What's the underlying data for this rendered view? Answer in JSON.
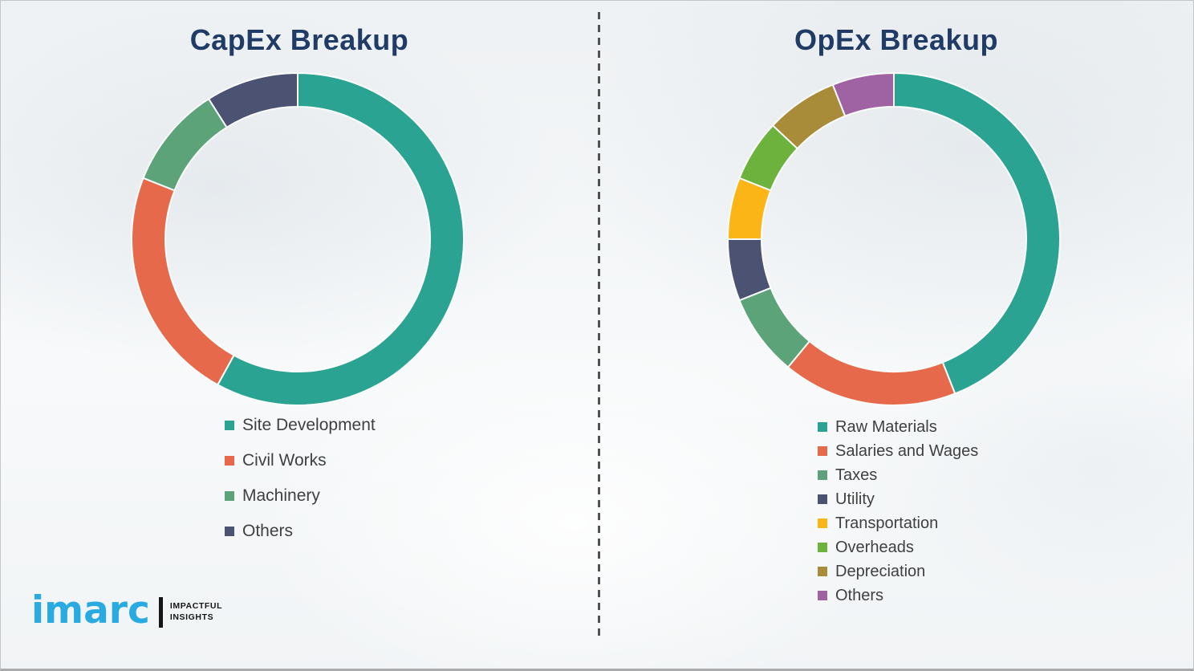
{
  "style": {
    "background": "#f2f4f5",
    "title_color": "#1f3b66",
    "legend_text_color": "#404040",
    "divider_color": "#525252",
    "segment_gap_color": "#fafbfb"
  },
  "chart_data": [
    {
      "type": "pie",
      "subtype": "donut",
      "title": "CapEx Breakup",
      "labels": [
        "Site Development",
        "Civil Works",
        "Machinery",
        "Others"
      ],
      "values": [
        58,
        23,
        10,
        9
      ],
      "values_note": "percent, estimated from arc angles (no numeric labels shown)",
      "colors": [
        "#2aa392",
        "#e5694a",
        "#5da37a",
        "#4b5272"
      ],
      "start_angle_deg": 0,
      "direction": "clockwise",
      "legend_position": "below"
    },
    {
      "type": "pie",
      "subtype": "donut",
      "title": "OpEx Breakup",
      "labels": [
        "Raw Materials",
        "Salaries and Wages",
        "Taxes",
        "Utility",
        "Transportation",
        "Overheads",
        "Depreciation",
        "Others"
      ],
      "values": [
        44,
        17,
        8,
        6,
        6,
        6,
        7,
        6
      ],
      "values_note": "percent, estimated from arc angles (no numeric labels shown)",
      "colors": [
        "#2aa392",
        "#e5694a",
        "#5da37a",
        "#4b5272",
        "#fbb517",
        "#6cb23c",
        "#a98c3a",
        "#9f62a2"
      ],
      "start_angle_deg": 0,
      "direction": "clockwise",
      "legend_position": "below"
    }
  ],
  "logo": {
    "brand": "imarc",
    "brand_color": "#29aae1",
    "tagline_line1": "IMPACTFUL",
    "tagline_line2": "INSIGHTS"
  }
}
